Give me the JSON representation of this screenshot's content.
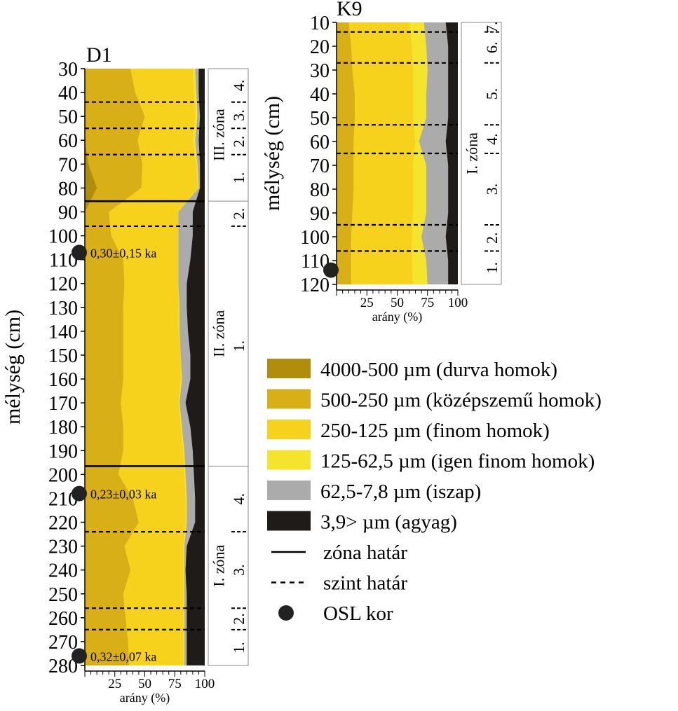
{
  "colors": {
    "coarse": "#b08e0c",
    "medium": "#d9af18",
    "fine": "#f6d21c",
    "veryfine": "#f4e42c",
    "silt": "#ababab",
    "clay": "#1e1b19",
    "line": "#000000",
    "osl": "#222222"
  },
  "chart_data": [
    {
      "type": "area",
      "title": "D1",
      "xlabel": "arány (%)",
      "ylabel": "mélység (cm)",
      "x_ticks": [
        "25",
        "50",
        "75",
        "100"
      ],
      "y_ticks": [
        "30",
        "40",
        "50",
        "60",
        "70",
        "80",
        "90",
        "100",
        "110",
        "120",
        "130",
        "140",
        "150",
        "160",
        "170",
        "180",
        "190",
        "200",
        "210",
        "220",
        "230",
        "240",
        "250",
        "260",
        "270",
        "280"
      ],
      "ylim": [
        30,
        280
      ],
      "xlim": [
        0,
        100
      ],
      "depth": [
        30,
        40,
        50,
        60,
        70,
        80,
        90,
        100,
        110,
        120,
        130,
        140,
        150,
        160,
        170,
        180,
        190,
        200,
        210,
        220,
        230,
        240,
        250,
        260,
        270,
        280
      ],
      "cumulative_series": [
        {
          "name": "4000-500 µm (durva homok)",
          "values": [
            0,
            0,
            0,
            0,
            3,
            10,
            0,
            0,
            0,
            0,
            0,
            0,
            0,
            0,
            0,
            0,
            0,
            0,
            0,
            0,
            0,
            0,
            0,
            0,
            0,
            0
          ]
        },
        {
          "name": "500-250 µm (középszemű homok)",
          "values": [
            38,
            42,
            50,
            44,
            48,
            47,
            20,
            22,
            32,
            33,
            32,
            32,
            32,
            32,
            30,
            32,
            32,
            28,
            40,
            45,
            33,
            38,
            32,
            34,
            36,
            37
          ]
        },
        {
          "name": "250-125 µm (finom homok)",
          "values": [
            90,
            91,
            92,
            90,
            93,
            94,
            78,
            78,
            78,
            78,
            78,
            78,
            80,
            80,
            78,
            80,
            82,
            83,
            84,
            84,
            82,
            82,
            82,
            82,
            82,
            82
          ]
        },
        {
          "name": "125-62,5 µm (igen finom homok)",
          "values": [
            92,
            93,
            94,
            92,
            94,
            95,
            78,
            78,
            78,
            78,
            79,
            79,
            80,
            81,
            79,
            81,
            83,
            84,
            85,
            85,
            83,
            83,
            83,
            83,
            83,
            83
          ]
        },
        {
          "name": "62,5-7,8 µm (iszap)",
          "values": [
            95,
            95,
            96,
            95,
            96,
            96,
            90,
            90,
            88,
            85,
            85,
            86,
            88,
            88,
            84,
            88,
            90,
            91,
            92,
            92,
            85,
            84,
            85,
            85,
            85,
            85
          ]
        }
      ],
      "zone_boundaries": [
        85.5,
        196.5
      ],
      "level_boundaries": [
        44,
        55,
        66,
        96,
        224,
        256,
        265
      ],
      "zones": [
        {
          "label": "III. zóna",
          "from": 30,
          "to": 85.5
        },
        {
          "label": "II. zóna",
          "from": 85.5,
          "to": 196.5
        },
        {
          "label": "I. zóna",
          "from": 196.5,
          "to": 280
        }
      ],
      "levels": [
        {
          "label": "4.",
          "from": 30,
          "to": 44
        },
        {
          "label": "3.",
          "from": 44,
          "to": 55
        },
        {
          "label": "2.",
          "from": 55,
          "to": 66
        },
        {
          "label": "1.",
          "from": 66,
          "to": 85.5
        },
        {
          "label": "2.",
          "from": 85.5,
          "to": 96
        },
        {
          "label": "1.",
          "from": 96,
          "to": 196.5
        },
        {
          "label": "4.",
          "from": 196.5,
          "to": 224
        },
        {
          "label": "3.",
          "from": 224,
          "to": 256
        },
        {
          "label": "2.",
          "from": 256,
          "to": 265
        },
        {
          "label": "1.",
          "from": 265,
          "to": 280
        }
      ],
      "osl": [
        {
          "depth": 107,
          "label": "0,30±0,15 ka"
        },
        {
          "depth": 208,
          "label": "0,23±0,03 ka"
        },
        {
          "depth": 276,
          "label": "0,32±0,07 ka"
        }
      ]
    },
    {
      "type": "area",
      "title": "K9",
      "xlabel": "arány (%)",
      "ylabel": "mélység (cm)",
      "x_ticks": [
        "25",
        "50",
        "75",
        "100"
      ],
      "y_ticks": [
        "10",
        "20",
        "30",
        "40",
        "50",
        "60",
        "70",
        "80",
        "90",
        "100",
        "110",
        "120"
      ],
      "ylim": [
        10,
        120
      ],
      "xlim": [
        0,
        100
      ],
      "depth": [
        10,
        20,
        30,
        40,
        50,
        60,
        70,
        80,
        90,
        100,
        110,
        120
      ],
      "cumulative_series": [
        {
          "name": "4000-500 µm (durva homok)",
          "values": [
            0,
            0,
            0,
            0,
            0,
            0,
            0,
            0,
            0,
            0,
            0,
            0
          ]
        },
        {
          "name": "500-250 µm (középszemű homok)",
          "values": [
            10,
            12,
            13,
            15,
            15,
            14,
            14,
            14,
            13,
            12,
            12,
            12
          ]
        },
        {
          "name": "250-125 µm (finom homok)",
          "values": [
            60,
            62,
            63,
            63,
            63,
            65,
            63,
            63,
            63,
            62,
            62,
            63
          ]
        },
        {
          "name": "125-62,5 µm (igen finom homok)",
          "values": [
            72,
            74,
            75,
            74,
            74,
            68,
            74,
            74,
            74,
            70,
            74,
            75
          ]
        },
        {
          "name": "62,5-7,8 µm (iszap)",
          "values": [
            90,
            92,
            92,
            92,
            92,
            90,
            92,
            92,
            92,
            90,
            92,
            92
          ]
        }
      ],
      "zone_boundaries": [],
      "level_boundaries": [
        14,
        27,
        53,
        65,
        95,
        106
      ],
      "zones": [
        {
          "label": "I. zóna",
          "from": 10,
          "to": 120
        }
      ],
      "levels": [
        {
          "label": "7.",
          "from": 10,
          "to": 14
        },
        {
          "label": "6.",
          "from": 14,
          "to": 27
        },
        {
          "label": "5.",
          "from": 27,
          "to": 53
        },
        {
          "label": "4.",
          "from": 53,
          "to": 65
        },
        {
          "label": "3.",
          "from": 65,
          "to": 95
        },
        {
          "label": "2.",
          "from": 95,
          "to": 106
        },
        {
          "label": "1.",
          "from": 106,
          "to": 120
        }
      ],
      "osl": [
        {
          "depth": 114,
          "label": ""
        }
      ]
    }
  ],
  "legend": {
    "items": [
      {
        "kind": "swatch",
        "key": "coarse",
        "label": "4000-500 µm (durva homok)"
      },
      {
        "kind": "swatch",
        "key": "medium",
        "label": "500-250 µm (középszemű homok)"
      },
      {
        "kind": "swatch",
        "key": "fine",
        "label": "250-125 µm (finom homok)"
      },
      {
        "kind": "swatch",
        "key": "veryfine",
        "label": "125-62,5 µm (igen finom homok)"
      },
      {
        "kind": "swatch",
        "key": "silt",
        "label": "62,5-7,8 µm (iszap)"
      },
      {
        "kind": "swatch",
        "key": "clay",
        "label": "3,9> µm (agyag)"
      },
      {
        "kind": "solid",
        "label": "zóna határ"
      },
      {
        "kind": "dashed",
        "label": "szint határ"
      },
      {
        "kind": "dot",
        "label": "OSL kor"
      }
    ]
  }
}
